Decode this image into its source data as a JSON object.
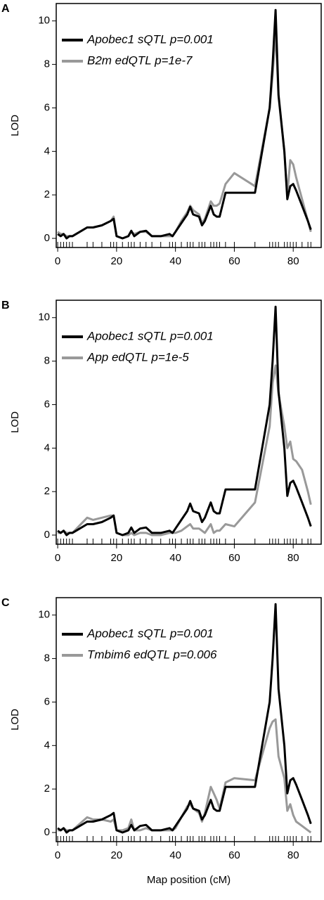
{
  "chart_data": [
    {
      "type": "line",
      "panel": "A",
      "ylabel": "LOD",
      "x": [
        0,
        1,
        2,
        3,
        4,
        5,
        10,
        12,
        15,
        18,
        19,
        20,
        22,
        24,
        25,
        26,
        28,
        30,
        32,
        35,
        38,
        39,
        40,
        42,
        44,
        45,
        46,
        48,
        49,
        50,
        52,
        53,
        54,
        55,
        57,
        60,
        67,
        72,
        73,
        74,
        75,
        77,
        78,
        79,
        80,
        81,
        83,
        85,
        86
      ],
      "series": [
        {
          "name": "Apobec1 sQTL p=0.001",
          "color": "#000000",
          "values": [
            0.2,
            0.1,
            0.2,
            0.0,
            0.1,
            0.1,
            0.5,
            0.5,
            0.6,
            0.8,
            0.9,
            0.1,
            0.0,
            0.1,
            0.35,
            0.1,
            0.3,
            0.35,
            0.1,
            0.1,
            0.2,
            0.1,
            0.3,
            0.7,
            1.1,
            1.45,
            1.1,
            1.0,
            0.6,
            0.8,
            1.5,
            1.1,
            1.0,
            1.0,
            2.1,
            2.1,
            2.1,
            6.0,
            8.0,
            10.5,
            6.6,
            4.0,
            1.8,
            2.4,
            2.5,
            2.2,
            1.5,
            0.8,
            0.4
          ]
        },
        {
          "name": "B2m edQTL p=1e-7",
          "color": "#999999",
          "values": [
            0.3,
            0.2,
            0.2,
            0.1,
            0.1,
            0.1,
            0.5,
            0.5,
            0.6,
            0.8,
            1.0,
            0.1,
            0.0,
            0.1,
            0.3,
            0.2,
            0.3,
            0.3,
            0.1,
            0.1,
            0.1,
            0.1,
            0.3,
            0.8,
            1.2,
            1.5,
            1.3,
            1.1,
            0.7,
            0.9,
            1.7,
            1.5,
            1.5,
            1.6,
            2.5,
            3.0,
            2.4,
            6.0,
            7.5,
            9.5,
            6.5,
            4.0,
            2.0,
            3.6,
            3.4,
            2.8,
            1.8,
            0.8,
            0.3
          ]
        }
      ],
      "xlim": [
        -0.5,
        89.5
      ],
      "ylim": [
        -0.42,
        10.8
      ],
      "xticks": [
        0,
        20,
        40,
        60,
        80
      ],
      "yticks": [
        0,
        2,
        4,
        6,
        8,
        10
      ]
    },
    {
      "type": "line",
      "panel": "B",
      "ylabel": "LOD",
      "x": [
        0,
        1,
        2,
        3,
        4,
        5,
        10,
        12,
        15,
        18,
        19,
        20,
        22,
        24,
        25,
        26,
        28,
        30,
        32,
        35,
        38,
        39,
        40,
        42,
        44,
        45,
        46,
        48,
        49,
        50,
        52,
        53,
        54,
        55,
        57,
        60,
        67,
        72,
        73,
        74,
        75,
        77,
        78,
        79,
        80,
        81,
        83,
        85,
        86
      ],
      "series": [
        {
          "name": "Apobec1 sQTL p=0.001",
          "color": "#000000",
          "values": [
            0.2,
            0.1,
            0.2,
            0.0,
            0.1,
            0.1,
            0.5,
            0.5,
            0.6,
            0.8,
            0.9,
            0.1,
            0.0,
            0.1,
            0.35,
            0.1,
            0.3,
            0.35,
            0.1,
            0.1,
            0.2,
            0.1,
            0.3,
            0.7,
            1.1,
            1.45,
            1.1,
            1.0,
            0.6,
            0.8,
            1.5,
            1.1,
            1.0,
            1.0,
            2.1,
            2.1,
            2.1,
            6.0,
            8.0,
            10.5,
            6.6,
            4.0,
            1.8,
            2.4,
            2.5,
            2.2,
            1.5,
            0.8,
            0.4
          ]
        },
        {
          "name": "App edQTL p=1e-5",
          "color": "#999999",
          "values": [
            0.1,
            0.1,
            0.2,
            0.1,
            0.1,
            0.1,
            0.8,
            0.7,
            0.8,
            0.9,
            0.9,
            0.1,
            0.0,
            0.0,
            0.1,
            0.0,
            0.1,
            0.1,
            0.0,
            0.0,
            0.1,
            0.1,
            0.1,
            0.2,
            0.4,
            0.5,
            0.3,
            0.3,
            0.2,
            0.1,
            0.5,
            0.1,
            0.2,
            0.2,
            0.5,
            0.4,
            1.5,
            5.0,
            7.0,
            7.8,
            6.5,
            5.0,
            4.0,
            4.3,
            3.5,
            3.4,
            3.0,
            2.0,
            1.4
          ]
        }
      ],
      "xlim": [
        -0.5,
        89.5
      ],
      "ylim": [
        -0.42,
        10.8
      ],
      "xticks": [
        0,
        20,
        40,
        60,
        80
      ],
      "yticks": [
        0,
        2,
        4,
        6,
        8,
        10
      ]
    },
    {
      "type": "line",
      "panel": "C",
      "ylabel": "LOD",
      "xlabel": "Map position (cM)",
      "x": [
        0,
        1,
        2,
        3,
        4,
        5,
        10,
        12,
        15,
        18,
        19,
        20,
        22,
        24,
        25,
        26,
        28,
        30,
        32,
        35,
        38,
        39,
        40,
        42,
        44,
        45,
        46,
        48,
        49,
        50,
        52,
        53,
        54,
        55,
        57,
        60,
        67,
        72,
        73,
        74,
        75,
        77,
        78,
        79,
        80,
        81,
        83,
        85,
        86
      ],
      "series": [
        {
          "name": "Apobec1 sQTL p=0.001",
          "color": "#000000",
          "values": [
            0.2,
            0.1,
            0.2,
            0.0,
            0.1,
            0.1,
            0.5,
            0.5,
            0.6,
            0.8,
            0.9,
            0.1,
            0.0,
            0.1,
            0.35,
            0.1,
            0.3,
            0.35,
            0.1,
            0.1,
            0.2,
            0.1,
            0.3,
            0.7,
            1.1,
            1.45,
            1.1,
            1.0,
            0.6,
            0.8,
            1.5,
            1.1,
            1.0,
            1.0,
            2.1,
            2.1,
            2.1,
            6.0,
            8.0,
            10.5,
            6.6,
            4.0,
            1.8,
            2.4,
            2.5,
            2.2,
            1.5,
            0.8,
            0.4
          ]
        },
        {
          "name": "Tmbim6 edQTL p=0.006",
          "color": "#999999",
          "values": [
            0.1,
            0.1,
            0.2,
            0.1,
            0.1,
            0.1,
            0.7,
            0.6,
            0.6,
            0.5,
            0.6,
            0.1,
            0.1,
            0.2,
            0.6,
            0.1,
            0.1,
            0.2,
            0.1,
            0.1,
            0.1,
            0.1,
            0.2,
            0.7,
            1.2,
            1.3,
            1.1,
            0.9,
            0.5,
            0.9,
            2.1,
            1.8,
            1.5,
            1.1,
            2.3,
            2.5,
            2.4,
            4.8,
            5.1,
            5.2,
            3.5,
            2.5,
            1.0,
            1.3,
            0.8,
            0.5,
            0.3,
            0.1,
            0.0
          ]
        }
      ],
      "xlim": [
        -0.5,
        89.5
      ],
      "ylim": [
        -0.42,
        10.8
      ],
      "xticks": [
        0,
        20,
        40,
        60,
        80
      ],
      "yticks": [
        0,
        2,
        4,
        6,
        8,
        10
      ]
    }
  ]
}
